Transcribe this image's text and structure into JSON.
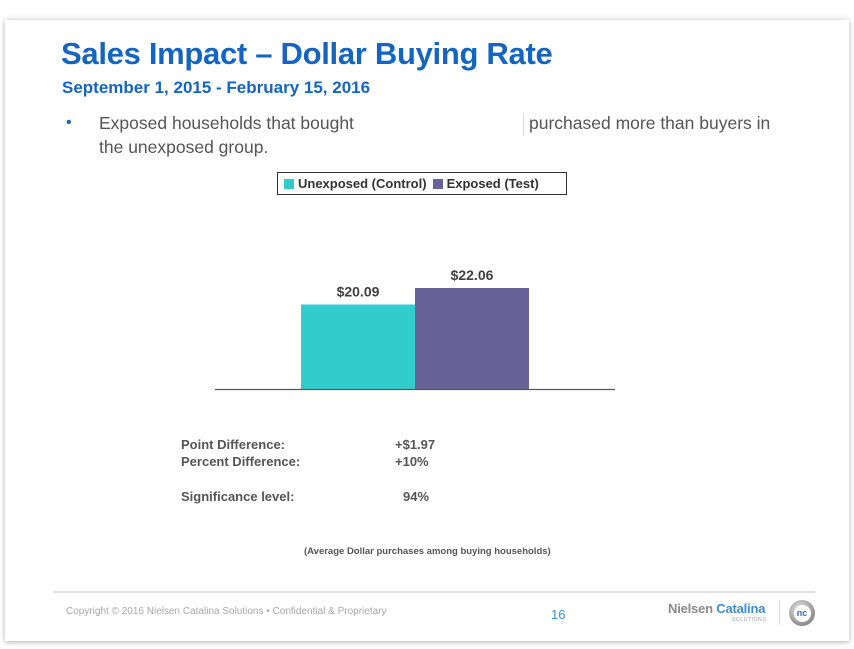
{
  "slide": {
    "title": "Sales Impact – Dollar Buying Rate",
    "subtitle": "September 1, 2015 - February 15, 2016",
    "bullet": {
      "line1_part1": "Exposed households that bought",
      "line1_part2": "purchased more than buyers in",
      "line2": "the unexposed group."
    },
    "stats": [
      {
        "label": "Point Difference:",
        "value": "+$1.97"
      },
      {
        "label": "Percent Difference:",
        "value": "+10%"
      },
      {
        "label": "Significance level:",
        "value": "94%"
      }
    ],
    "caption": "(Average Dollar purchases among buying households)"
  },
  "footer": {
    "copyright": "Copyright  ©  2016 Nielsen Catalina Solutions  •  Confidential & Proprietary",
    "page_number": "16",
    "brand_part1": "Nielsen ",
    "brand_part2": "Catalina",
    "brand_sub": "SOLUTIONS",
    "logo_text": "nc"
  },
  "chart_data": {
    "type": "bar",
    "title": "",
    "xlabel": "",
    "ylabel": "",
    "categories": [
      ""
    ],
    "series": [
      {
        "name": "Unexposed (Control)",
        "values": [
          20.09
        ],
        "label": "$20.09",
        "color": "#33cccc"
      },
      {
        "name": "Exposed (Test)",
        "values": [
          22.06
        ],
        "label": "$22.06",
        "color": "#676399"
      }
    ],
    "ylim": [
      0,
      22.06
    ],
    "grid": false,
    "legend": "top-center"
  }
}
